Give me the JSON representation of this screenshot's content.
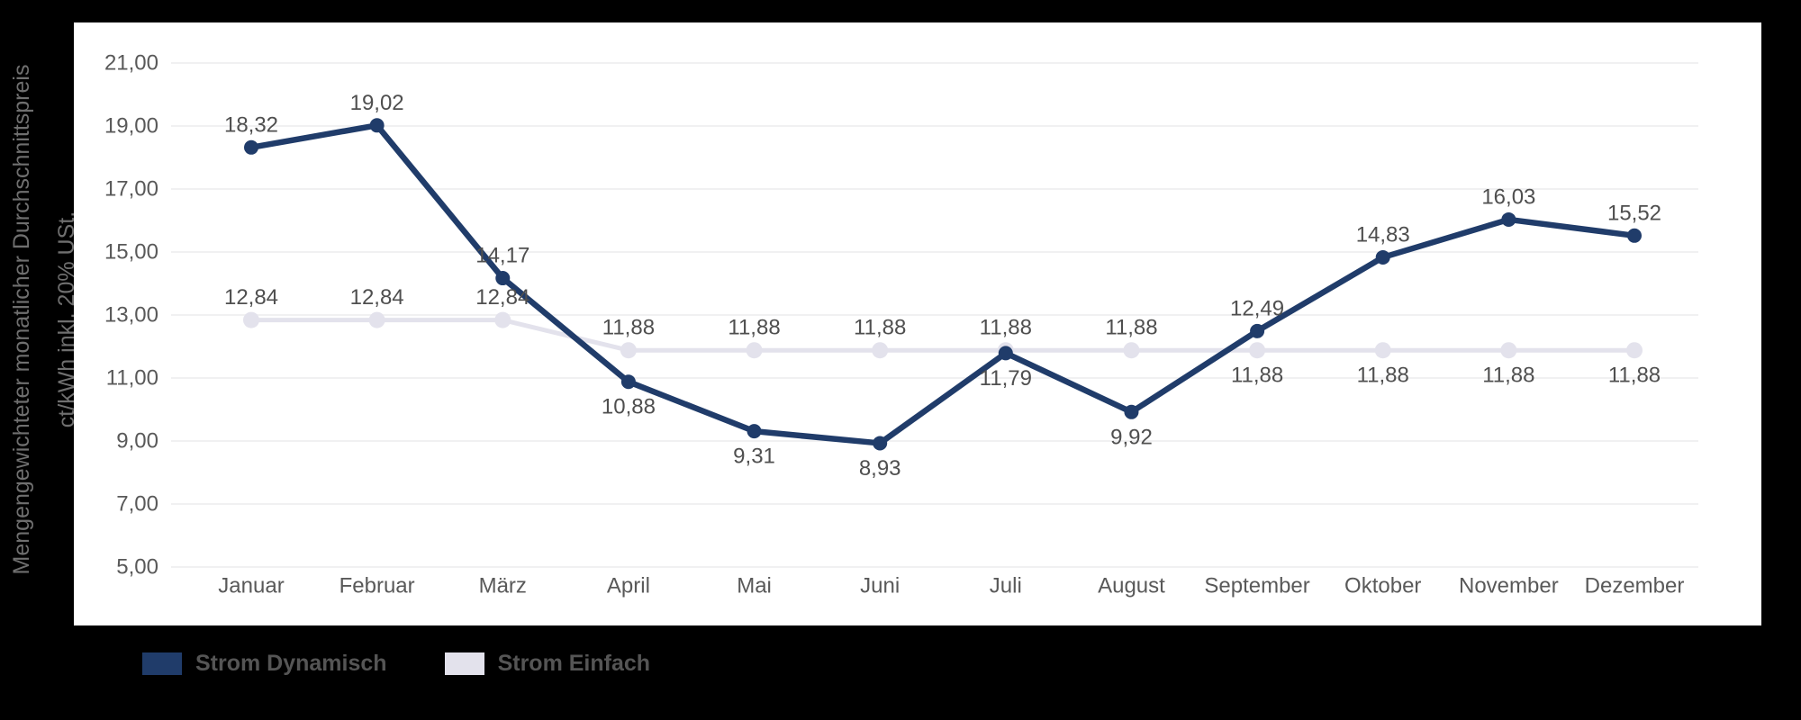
{
  "page": {
    "background": "#000000"
  },
  "axis_title": {
    "line1": "Mengengewichteter monatlicher Durchschnittspreis",
    "line2": "ct/kWh inkl. 20% USt."
  },
  "chart_data": {
    "type": "line",
    "title": "",
    "categories": [
      "Januar",
      "Februar",
      "März",
      "April",
      "Mai",
      "Juni",
      "Juli",
      "August",
      "September",
      "Oktober",
      "November",
      "Dezember"
    ],
    "series": [
      {
        "name": "Strom Dynamisch",
        "color": "#203c6a",
        "values": [
          18.32,
          19.02,
          14.17,
          10.88,
          9.31,
          8.93,
          11.79,
          9.92,
          12.49,
          14.83,
          16.03,
          15.52
        ],
        "point_labels": [
          "18,32",
          "19,02",
          "14,17",
          "10,88",
          "9,31",
          "8,93",
          "11,79",
          "9,92",
          "12,49",
          "14,83",
          "16,03",
          "15,52"
        ],
        "label_side": [
          "above",
          "above",
          "above",
          "below",
          "below",
          "below",
          "below",
          "below",
          "above",
          "above",
          "above",
          "above"
        ]
      },
      {
        "name": "Strom Einfach",
        "color": "#e3e2ec",
        "values": [
          12.84,
          12.84,
          12.84,
          11.88,
          11.88,
          11.88,
          11.88,
          11.88,
          11.88,
          11.88,
          11.88,
          11.88
        ],
        "point_labels": [
          "12,84",
          "12,84",
          "12,84",
          "11,88",
          "11,88",
          "11,88",
          "11,88",
          "11,88",
          "11,88",
          "11,88",
          "11,88",
          "11,88"
        ],
        "label_side": [
          "above",
          "above",
          "above",
          "above",
          "above",
          "above",
          "above",
          "above",
          "below",
          "below",
          "below",
          "below"
        ]
      }
    ],
    "xlabel": "",
    "ylabel": "Mengengewichteter monatlicher Durchschnittspreis ct/kWh inkl. 20% USt.",
    "ylim": [
      5,
      21
    ],
    "yticks": [
      5,
      7,
      9,
      11,
      13,
      15,
      17,
      19,
      21
    ],
    "ytick_labels": [
      "5,00",
      "7,00",
      "9,00",
      "11,00",
      "13,00",
      "15,00",
      "17,00",
      "19,00",
      "21,00"
    ],
    "grid": true,
    "legend_position": "bottom-left"
  },
  "legend": {
    "items": [
      {
        "label": "Strom Dynamisch",
        "color": "#203c6a"
      },
      {
        "label": "Strom Einfach",
        "color": "#e3e2ec"
      }
    ]
  },
  "colors": {
    "background": "#000000",
    "card": "#ffffff",
    "gridline": "#f1f1f2",
    "tick_text": "#595959",
    "month_text": "#595959",
    "data_label_text": "#4f4f4f",
    "axis_title_text": "#6f6f6f",
    "legend_text": "#555555"
  }
}
